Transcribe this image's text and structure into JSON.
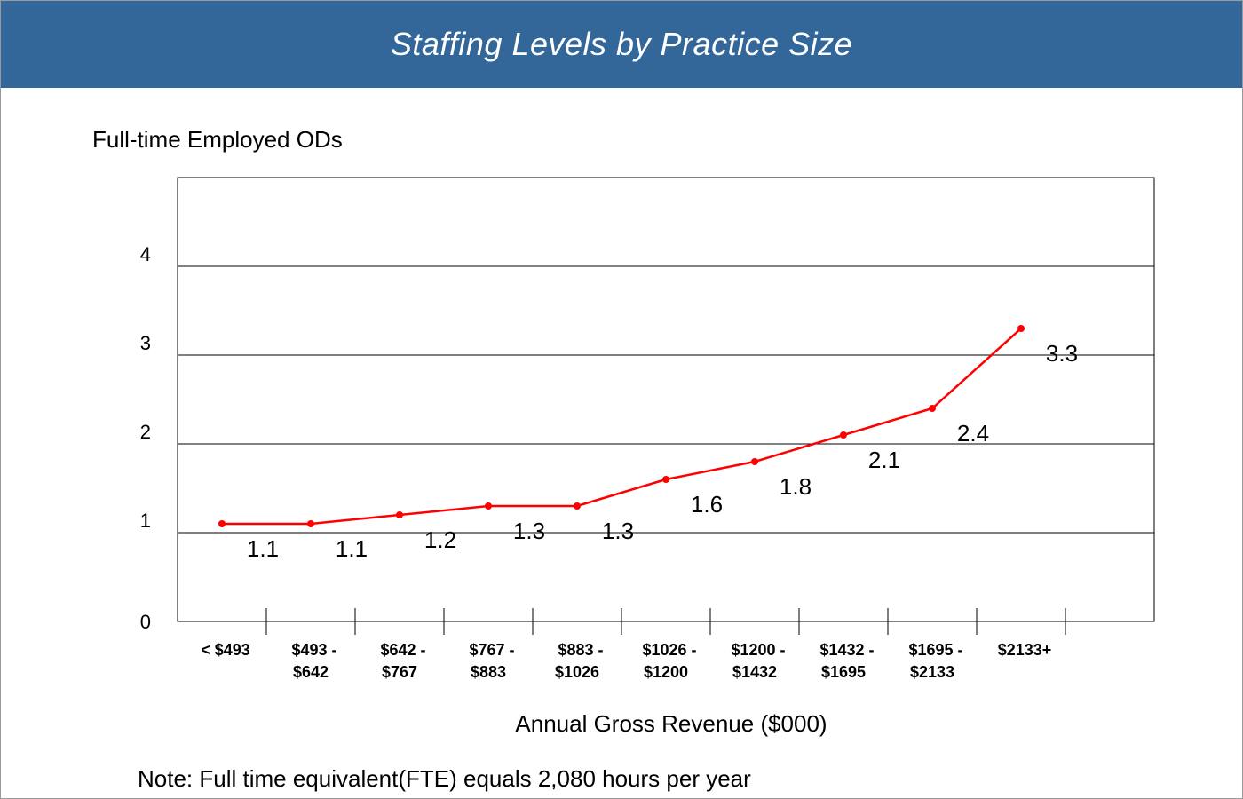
{
  "chart_data": {
    "type": "line",
    "title": "Staffing Levels by Practice Size",
    "ylabel": "Full-time Employed ODs",
    "xlabel": "Annual Gross Revenue ($000)",
    "note": "Note: Full time equivalent(FTE) equals 2,080 hours per year",
    "categories": [
      [
        "< $493"
      ],
      [
        "$493 -",
        "$642"
      ],
      [
        "$642 -",
        "$767"
      ],
      [
        "$767 -",
        "$883"
      ],
      [
        "$883 -",
        "$1026"
      ],
      [
        "$1026 -",
        "$1200"
      ],
      [
        "$1200 -",
        "$1432"
      ],
      [
        "$1432 -",
        "$1695"
      ],
      [
        "$1695 -",
        "$2133"
      ],
      [
        "$2133+"
      ]
    ],
    "series": [
      {
        "values": [
          1.1,
          1.1,
          1.2,
          1.3,
          1.3,
          1.6,
          1.8,
          2.1,
          2.4,
          3.3
        ],
        "labels": [
          "1.1",
          "1.1",
          "1.2",
          "1.3",
          "1.3",
          "1.6",
          "1.8",
          "2.1",
          "2.4",
          "3.3"
        ]
      }
    ],
    "yticks": [
      "0",
      "1",
      "2",
      "3",
      "4"
    ],
    "ylim": [
      0,
      5
    ],
    "grid": true,
    "legend": "none",
    "colors": {
      "header": "#336699",
      "line": "#ff0000",
      "grid": "#000000"
    }
  }
}
